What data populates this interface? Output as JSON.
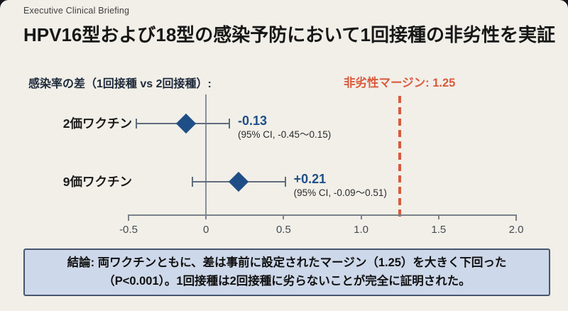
{
  "header": {
    "kicker": "Executive Clinical Briefing",
    "title": "HPV16型および18型の感染予防において1回接種の非劣性を実証"
  },
  "plot": {
    "axis_caption": "感染率の差（1回接種 vs 2回接種）:",
    "margin_label": "非劣性マージン: 1.25"
  },
  "chart_data": {
    "type": "forest",
    "xlim": [
      -0.5,
      2.0
    ],
    "x_ticks": [
      -0.5,
      0,
      0.5,
      1.0,
      1.5,
      2.0
    ],
    "x_tick_labels": [
      "-0.5",
      "0",
      "0.5",
      "1.0",
      "1.5",
      "2.0"
    ],
    "zero_reference": 0,
    "noninferiority_margin": 1.25,
    "rows": [
      {
        "label": "2価ワクチン",
        "estimate": -0.13,
        "ci_low": -0.45,
        "ci_high": 0.15,
        "estimate_label": "-0.13",
        "ci_label": "(95% CI, -0.45〜0.15)"
      },
      {
        "label": "9価ワクチン",
        "estimate": 0.21,
        "ci_low": -0.09,
        "ci_high": 0.51,
        "estimate_label": "+0.21",
        "ci_label": "(95% CI, -0.09〜0.51)"
      }
    ]
  },
  "conclusion": {
    "text": "結論: 両ワクチンともに、差は事前に設定されたマージン（1.25）を大きく下回った（P<0.001）。1回接種は2回接種に劣らないことが完全に証明された。"
  },
  "colors": {
    "background": "#f1efe8",
    "accent_blue": "#1f4e87",
    "accent_red": "#da5a3d",
    "ci_line_gray": "#5f6d7c",
    "axis_gray": "#7b828b",
    "conclusion_bg": "#cdd8ea",
    "conclusion_border": "#47566f"
  }
}
